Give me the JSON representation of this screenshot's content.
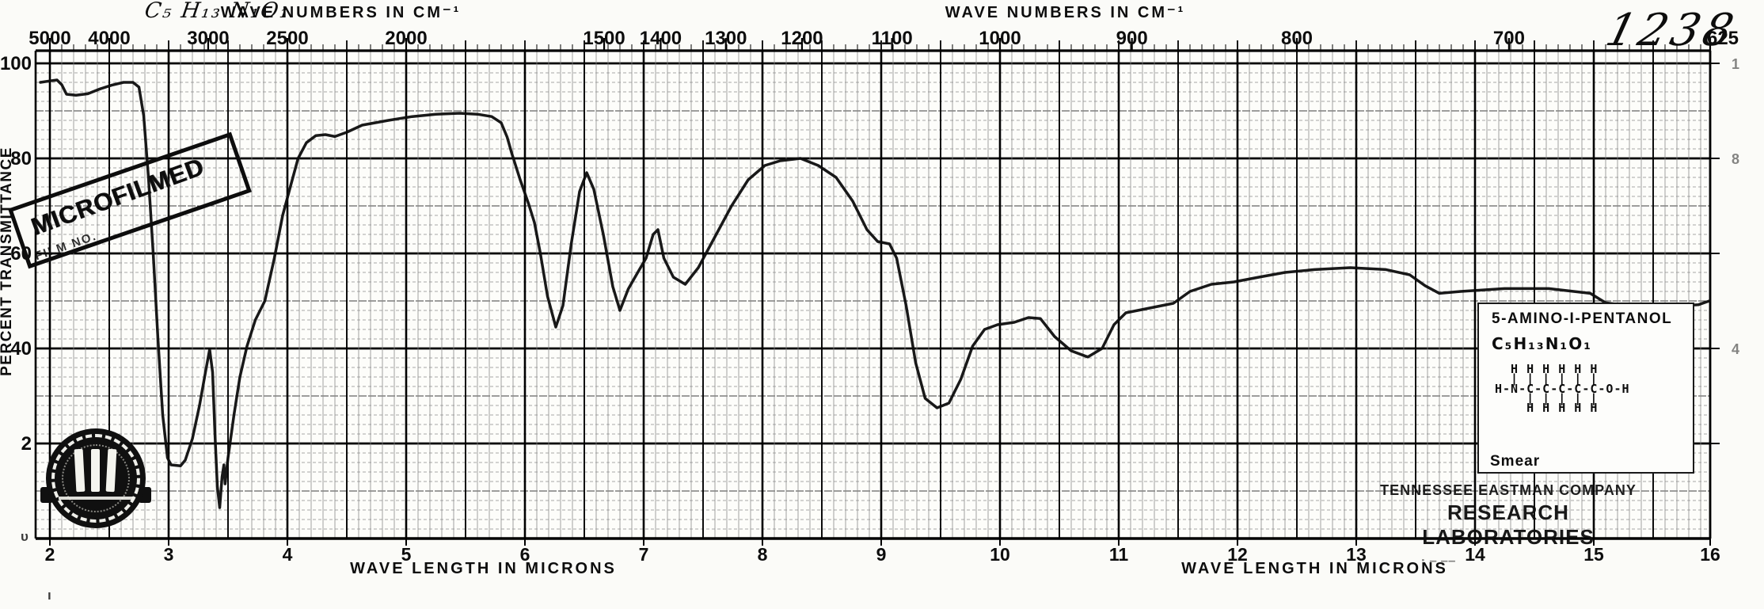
{
  "header": {
    "handwritten_formula": "C₅ H₁₃ N₁O₁",
    "handwritten_number": "1238"
  },
  "microfilm_stamp": {
    "line1": "MICROFILMED",
    "line2": "FILM NO."
  },
  "info_box": {
    "compound_name": "5-AMINO-I-PENTANOL",
    "formula": "C₅H₁₃N₁O₁",
    "structure_lines": [
      "  H H H H H H",
      "  | | | | | |",
      "H-N-C-C-C-C-C-O-H",
      "    | | | | |",
      "    H H H H H"
    ],
    "sample_type": "Smear",
    "company_line1": "TENNESSEE EASTMAN COMPANY",
    "company_line2": "RESEARCH LABORATORIES"
  },
  "stray_marks": {
    "corner": "υ",
    "below_axis": "ı",
    "dashes": "· – ––"
  },
  "colors": {
    "ink": "#0d0d0d",
    "paper": "#fdfdfa",
    "grid_fine": "#8a8a8a",
    "grid_mid": "#3d3d3d",
    "grid_heavy": "#000000"
  },
  "chart_data": {
    "type": "line",
    "title": "Infrared transmittance spectrum of 5-amino-1-pentanol (smear)",
    "x_axis_top": {
      "label": "WAVE NUMBERS IN CM⁻¹",
      "label_positions_um": [
        4.45,
        10.55
      ],
      "ticks": [
        {
          "label": "5000",
          "um": 2.0
        },
        {
          "label": "4000",
          "um": 2.5
        },
        {
          "label": "3000",
          "um": 3.333
        },
        {
          "label": "2500",
          "um": 4.0
        },
        {
          "label": "2000",
          "um": 5.0
        },
        {
          "label": "1500",
          "um": 6.667
        },
        {
          "label": "1400",
          "um": 7.143
        },
        {
          "label": "1300",
          "um": 7.692
        },
        {
          "label": "1200",
          "um": 8.333
        },
        {
          "label": "1100",
          "um": 9.091
        },
        {
          "label": "1000",
          "um": 10.0
        },
        {
          "label": "900",
          "um": 11.111
        },
        {
          "label": "800",
          "um": 12.5
        },
        {
          "label": "700",
          "um": 14.286
        },
        {
          "label": "625",
          "um": 16.0
        }
      ]
    },
    "x_axis_bottom": {
      "label": "WAVE LENGTH IN MICRONS",
      "label_positions_um": [
        5.65,
        12.65
      ],
      "range_um": [
        2,
        16
      ],
      "tick_labels": [
        "2",
        "3",
        "4",
        "5",
        "6",
        "7",
        "8",
        "9",
        "10",
        "11",
        "12",
        "13",
        "14",
        "15",
        "16"
      ]
    },
    "y_axis": {
      "label": "PERCENT TRANSMITTANCE",
      "range": [
        0,
        100
      ],
      "tick_values": [
        100,
        80,
        60,
        40,
        20
      ],
      "tick_labels": [
        "100",
        "80",
        "60",
        "40",
        "2"
      ],
      "right_partial_labels": [
        {
          "label": "1",
          "pct": 100
        },
        {
          "label": "8",
          "pct": 80
        },
        {
          "label": "4",
          "pct": 40
        }
      ]
    },
    "grid": {
      "x_fine_step_um": 0.1,
      "x_heavy_step_um": 0.5,
      "y_fine_step_pct": 2,
      "y_mid_step_pct": 10,
      "y_heavy_step_pct": 20
    },
    "series": [
      {
        "name": "percent-transmittance",
        "points": [
          [
            1.92,
            96
          ],
          [
            2.0,
            96.3
          ],
          [
            2.06,
            96.5
          ],
          [
            2.1,
            95.5
          ],
          [
            2.14,
            93.5
          ],
          [
            2.22,
            93.3
          ],
          [
            2.32,
            93.6
          ],
          [
            2.42,
            94.6
          ],
          [
            2.52,
            95.4
          ],
          [
            2.62,
            96
          ],
          [
            2.7,
            96
          ],
          [
            2.75,
            95
          ],
          [
            2.79,
            89
          ],
          [
            2.83,
            76
          ],
          [
            2.87,
            60
          ],
          [
            2.91,
            42
          ],
          [
            2.95,
            26
          ],
          [
            2.99,
            17
          ],
          [
            3.02,
            15.5
          ],
          [
            3.1,
            15.3
          ],
          [
            3.14,
            16.5
          ],
          [
            3.2,
            21
          ],
          [
            3.26,
            28
          ],
          [
            3.31,
            35
          ],
          [
            3.345,
            39.8
          ],
          [
            3.37,
            35
          ],
          [
            3.39,
            22
          ],
          [
            3.41,
            11
          ],
          [
            3.43,
            6.5
          ],
          [
            3.45,
            13
          ],
          [
            3.465,
            15.5
          ],
          [
            3.475,
            11.5
          ],
          [
            3.5,
            17
          ],
          [
            3.55,
            26
          ],
          [
            3.6,
            34
          ],
          [
            3.66,
            40.5
          ],
          [
            3.73,
            46
          ],
          [
            3.81,
            50
          ],
          [
            3.89,
            59
          ],
          [
            3.96,
            68
          ],
          [
            4.03,
            74.5
          ],
          [
            4.09,
            80
          ],
          [
            4.16,
            83.3
          ],
          [
            4.24,
            84.8
          ],
          [
            4.32,
            85
          ],
          [
            4.4,
            84.6
          ],
          [
            4.5,
            85.5
          ],
          [
            4.63,
            87
          ],
          [
            4.85,
            88
          ],
          [
            5.05,
            88.8
          ],
          [
            5.25,
            89.3
          ],
          [
            5.45,
            89.5
          ],
          [
            5.6,
            89.3
          ],
          [
            5.72,
            88.8
          ],
          [
            5.8,
            87.5
          ],
          [
            5.85,
            84.5
          ],
          [
            5.89,
            81
          ],
          [
            5.96,
            75.5
          ],
          [
            6.03,
            70.5
          ],
          [
            6.08,
            66.5
          ],
          [
            6.13,
            60
          ],
          [
            6.19,
            51
          ],
          [
            6.26,
            44.5
          ],
          [
            6.32,
            49
          ],
          [
            6.39,
            62
          ],
          [
            6.46,
            73
          ],
          [
            6.52,
            77
          ],
          [
            6.58,
            73.5
          ],
          [
            6.66,
            64
          ],
          [
            6.74,
            53
          ],
          [
            6.8,
            48
          ],
          [
            6.87,
            52.5
          ],
          [
            6.95,
            56
          ],
          [
            7.02,
            59
          ],
          [
            7.08,
            64
          ],
          [
            7.12,
            65
          ],
          [
            7.17,
            59
          ],
          [
            7.25,
            55
          ],
          [
            7.35,
            53.5
          ],
          [
            7.46,
            57
          ],
          [
            7.6,
            63.5
          ],
          [
            7.74,
            70
          ],
          [
            7.88,
            75.5
          ],
          [
            8.02,
            78.5
          ],
          [
            8.15,
            79.5
          ],
          [
            8.32,
            80
          ],
          [
            8.47,
            78.5
          ],
          [
            8.62,
            76
          ],
          [
            8.76,
            71
          ],
          [
            8.88,
            65
          ],
          [
            8.97,
            62.5
          ],
          [
            9.07,
            62
          ],
          [
            9.13,
            59
          ],
          [
            9.21,
            49
          ],
          [
            9.29,
            37
          ],
          [
            9.37,
            29.5
          ],
          [
            9.47,
            27.5
          ],
          [
            9.57,
            28.5
          ],
          [
            9.67,
            33.5
          ],
          [
            9.77,
            40.5
          ],
          [
            9.87,
            44
          ],
          [
            9.98,
            45
          ],
          [
            10.12,
            45.5
          ],
          [
            10.24,
            46.5
          ],
          [
            10.34,
            46.3
          ],
          [
            10.46,
            42.5
          ],
          [
            10.6,
            39.5
          ],
          [
            10.74,
            38.2
          ],
          [
            10.86,
            40
          ],
          [
            10.96,
            45
          ],
          [
            11.06,
            47.5
          ],
          [
            11.26,
            48.5
          ],
          [
            11.46,
            49.5
          ],
          [
            11.6,
            52
          ],
          [
            11.78,
            53.5
          ],
          [
            11.97,
            54
          ],
          [
            12.18,
            55
          ],
          [
            12.4,
            56
          ],
          [
            12.65,
            56.6
          ],
          [
            12.95,
            57
          ],
          [
            13.25,
            56.6
          ],
          [
            13.45,
            55.5
          ],
          [
            13.58,
            53.2
          ],
          [
            13.7,
            51.6
          ],
          [
            13.88,
            52
          ],
          [
            14.25,
            52.6
          ],
          [
            14.62,
            52.6
          ],
          [
            14.97,
            51.6
          ],
          [
            15.1,
            49.6
          ],
          [
            15.35,
            48.8
          ],
          [
            15.65,
            48.8
          ],
          [
            15.88,
            49.2
          ],
          [
            16.0,
            50
          ]
        ]
      }
    ]
  }
}
